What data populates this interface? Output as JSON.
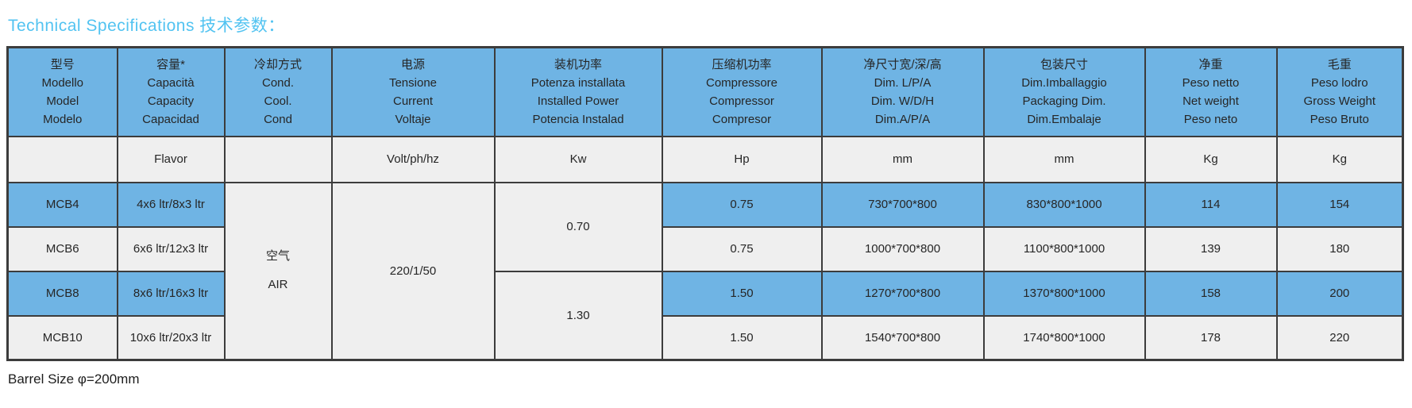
{
  "title": "Technical Specifications 技术参数：",
  "footnote": "Barrel Size φ=200mm",
  "table": {
    "columns": [
      {
        "lines": [
          "型号",
          "Modello",
          "Model",
          "Modelo"
        ],
        "unit": ""
      },
      {
        "lines": [
          "容量*",
          "Capacità",
          "Capacity",
          "Capacidad"
        ],
        "unit": "Flavor"
      },
      {
        "lines": [
          "冷却方式",
          "Cond.",
          "Cool.",
          "Cond"
        ],
        "unit": ""
      },
      {
        "lines": [
          "电源",
          "Tensione",
          "Current",
          "Voltaje"
        ],
        "unit": "Volt/ph/hz"
      },
      {
        "lines": [
          "装机功率",
          "Potenza installata",
          "Installed Power",
          "Potencia Instalad"
        ],
        "unit": "Kw"
      },
      {
        "lines": [
          "压缩机功率",
          "Compressore",
          "Compressor",
          "Compresor"
        ],
        "unit": "Hp"
      },
      {
        "lines": [
          "净尺寸宽/深/高",
          "Dim. L/P/A",
          "Dim. W/D/H",
          "Dim.A/P/A"
        ],
        "unit": "mm"
      },
      {
        "lines": [
          "包装尺寸",
          "Dim.Imballaggio",
          "Packaging Dim.",
          "Dim.Embalaje"
        ],
        "unit": "mm"
      },
      {
        "lines": [
          "净重",
          "Peso netto",
          "Net weight",
          "Peso neto"
        ],
        "unit": "Kg"
      },
      {
        "lines": [
          "毛重",
          "Peso lodro",
          "Gross Weight",
          "Peso Bruto"
        ],
        "unit": "Kg"
      }
    ],
    "merged": {
      "cooling_zh": "空气",
      "cooling_en": "AIR",
      "voltage": "220/1/50",
      "installed_power_group1": "0.70",
      "installed_power_group2": "1.30"
    },
    "rows": [
      {
        "model": "MCB4",
        "capacity": "4x6 ltr/8x3 ltr",
        "compressor_hp": "0.75",
        "net_dim": "730*700*800",
        "pkg_dim": "830*800*1000",
        "net_weight": "114",
        "gross_weight": "154"
      },
      {
        "model": "MCB6",
        "capacity": "6x6 ltr/12x3 ltr",
        "compressor_hp": "0.75",
        "net_dim": "1000*700*800",
        "pkg_dim": "1100*800*1000",
        "net_weight": "139",
        "gross_weight": "180"
      },
      {
        "model": "MCB8",
        "capacity": "8x6 ltr/16x3 ltr",
        "compressor_hp": "1.50",
        "net_dim": "1270*700*800",
        "pkg_dim": "1370*800*1000",
        "net_weight": "158",
        "gross_weight": "200"
      },
      {
        "model": "MCB10",
        "capacity": "10x6 ltr/20x3 ltr",
        "compressor_hp": "1.50",
        "net_dim": "1540*700*800",
        "pkg_dim": "1740*800*1000",
        "net_weight": "178",
        "gross_weight": "220"
      }
    ],
    "colors": {
      "header_blue": "#6fb4e4",
      "row_gray": "#efefef",
      "border": "#3c3c3c",
      "title_blue": "#52c3f1"
    }
  }
}
